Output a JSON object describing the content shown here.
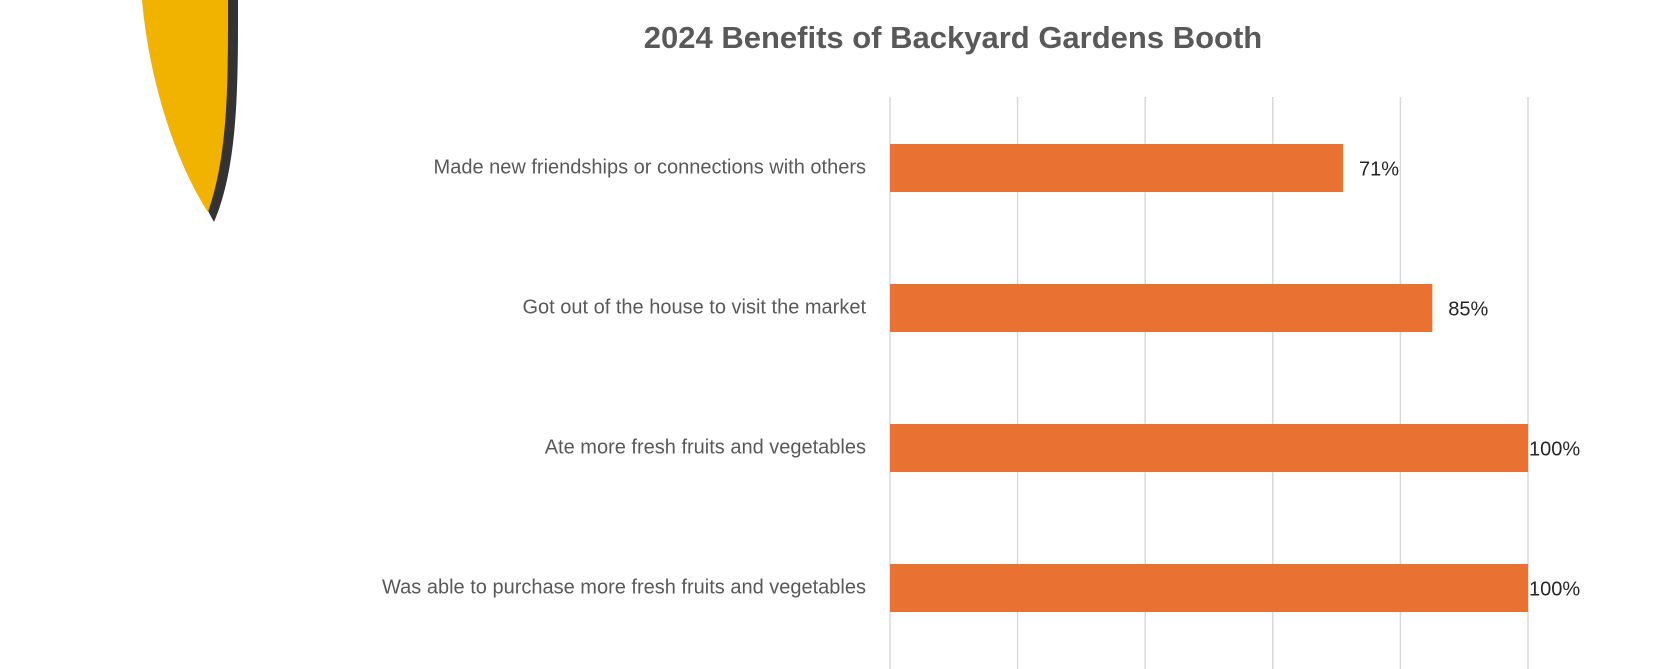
{
  "chart_data": {
    "type": "bar",
    "orientation": "horizontal",
    "title": "2024 Benefits of Backyard Gardens Booth",
    "categories": [
      "Made new friendships or connections with others",
      "Got out of the house to visit the market",
      "Ate more fresh fruits and vegetables",
      "Was able to purchase more fresh fruits and vegetables"
    ],
    "values": [
      71,
      85,
      100,
      100
    ],
    "value_labels": [
      "71%",
      "85%",
      "100%",
      "100%"
    ],
    "color": "#e97132",
    "xlim": [
      0,
      100
    ],
    "xticks": [
      0,
      20,
      40,
      60,
      80,
      100
    ],
    "grid": true
  }
}
